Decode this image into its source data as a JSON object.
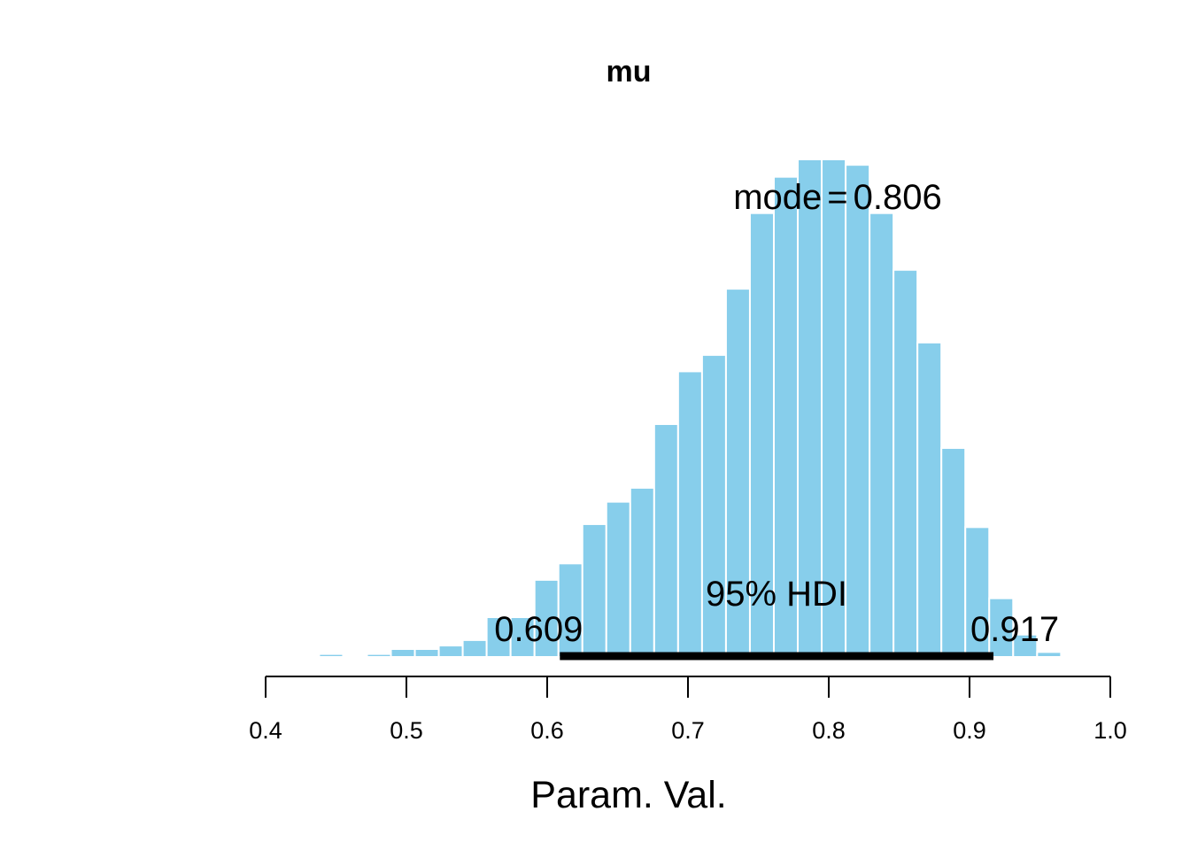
{
  "chart_data": {
    "type": "bar",
    "title": "mu",
    "xlabel": "Param. Val.",
    "ylabel": "",
    "xlim": [
      0.4,
      1.0
    ],
    "x_ticks": [
      "0.4",
      "0.5",
      "0.6",
      "0.7",
      "0.8",
      "0.9",
      "1.0"
    ],
    "x_tick_values": [
      0.4,
      0.5,
      0.6,
      0.7,
      0.8,
      0.9,
      1.0
    ],
    "bin_width": 0.017,
    "bins": [
      {
        "start": 0.438,
        "value": 0.6
      },
      {
        "start": 0.472,
        "value": 0.6
      },
      {
        "start": 0.489,
        "value": 1.6
      },
      {
        "start": 0.506,
        "value": 1.6
      },
      {
        "start": 0.523,
        "value": 2.3
      },
      {
        "start": 0.54,
        "value": 3.4
      },
      {
        "start": 0.557,
        "value": 8.0
      },
      {
        "start": 0.574,
        "value": 8.0
      },
      {
        "start": 0.591,
        "value": 15.5
      },
      {
        "start": 0.608,
        "value": 18.8
      },
      {
        "start": 0.625,
        "value": 26.7
      },
      {
        "start": 0.642,
        "value": 31.2
      },
      {
        "start": 0.659,
        "value": 34.0
      },
      {
        "start": 0.676,
        "value": 46.8
      },
      {
        "start": 0.693,
        "value": 57.4
      },
      {
        "start": 0.71,
        "value": 60.7
      },
      {
        "start": 0.727,
        "value": 74.0
      },
      {
        "start": 0.744,
        "value": 89.2
      },
      {
        "start": 0.761,
        "value": 96.5
      },
      {
        "start": 0.778,
        "value": 100.0
      },
      {
        "start": 0.795,
        "value": 100.0
      },
      {
        "start": 0.812,
        "value": 98.9
      },
      {
        "start": 0.829,
        "value": 89.2
      },
      {
        "start": 0.846,
        "value": 77.8
      },
      {
        "start": 0.863,
        "value": 63.2
      },
      {
        "start": 0.88,
        "value": 42.0
      },
      {
        "start": 0.897,
        "value": 26.1
      },
      {
        "start": 0.914,
        "value": 11.8
      },
      {
        "start": 0.931,
        "value": 4.5
      },
      {
        "start": 0.948,
        "value": 1.0
      }
    ],
    "bar_color": "#87CEEB",
    "bar_edge_color": "#ffffff",
    "hdi": {
      "low": 0.609,
      "high": 0.917,
      "label": "95% HDI",
      "low_label": "0.609",
      "high_label": "0.917",
      "color": "#000000"
    },
    "mode": {
      "label": "mode",
      "symbol": "=",
      "value": "0.806"
    },
    "grid": false
  }
}
